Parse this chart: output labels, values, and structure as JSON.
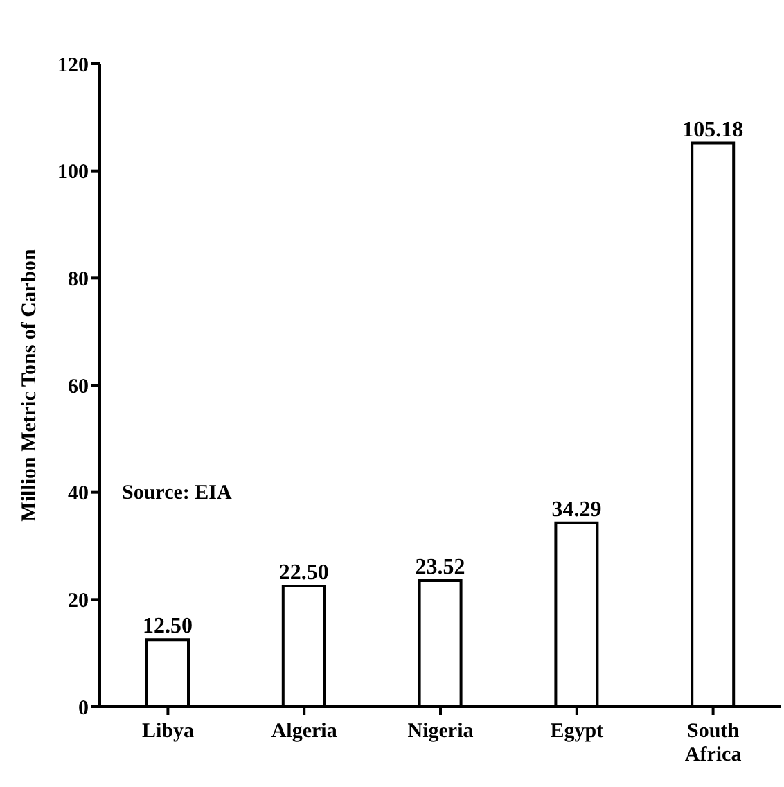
{
  "chart_data": {
    "type": "bar",
    "ylabel": "Million Metric Tons of Carbon",
    "categories": [
      "Libya",
      "Algeria",
      "Nigeria",
      "Egypt",
      "South Africa"
    ],
    "values": [
      12.5,
      22.5,
      23.52,
      34.29,
      105.18
    ],
    "color": "#ffffff",
    "ylim": [
      0,
      120
    ],
    "yticks": [
      0,
      20,
      40,
      60,
      80,
      100,
      120
    ],
    "value_labels": [
      "12.50",
      "22.50",
      "23.52",
      "34.29",
      "105.18"
    ],
    "grid": false,
    "annotations": [
      "Source: EIA"
    ]
  }
}
